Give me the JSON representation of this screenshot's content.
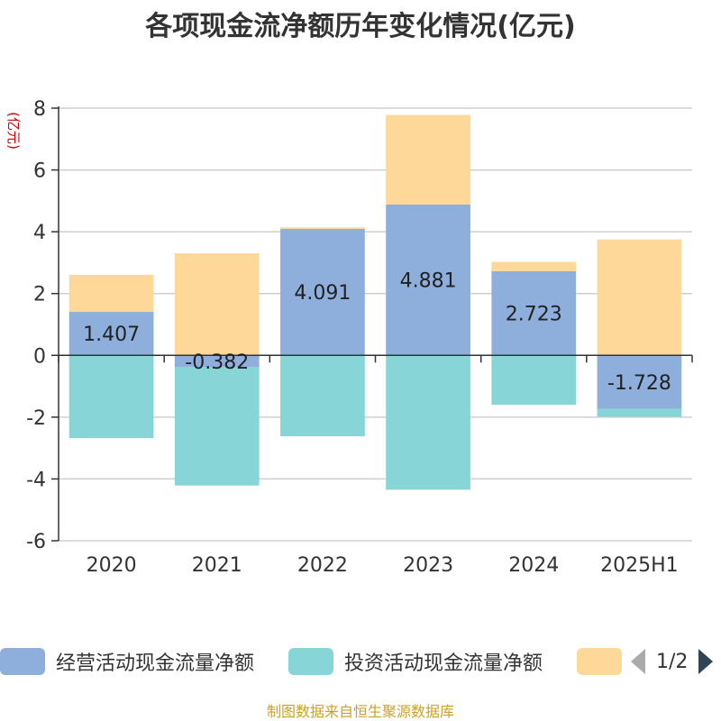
{
  "title": "各项现金流净额历年变化情况(亿元)",
  "chart_data": {
    "type": "bar",
    "stacked": true,
    "y_unit_label": "(亿元)",
    "categories": [
      "2020",
      "2021",
      "2022",
      "2023",
      "2024",
      "2025H1"
    ],
    "ylim": [
      -6,
      8
    ],
    "yticks": [
      -6,
      -4,
      -2,
      0,
      2,
      4,
      6,
      8
    ],
    "grid": true,
    "legend_position": "bottom",
    "series": [
      {
        "name": "经营活动现金流量净额",
        "color": "#8eaedb",
        "values": [
          1.407,
          -0.382,
          4.091,
          4.881,
          2.723,
          -1.728
        ],
        "labels": [
          "1.407",
          "-0.382",
          "4.091",
          "4.881",
          "2.723",
          "-1.728"
        ]
      },
      {
        "name": "投资活动现金流量净额",
        "color": "#88d5d8",
        "values": [
          -2.68,
          -3.83,
          -2.62,
          -4.35,
          -1.6,
          -0.26
        ]
      },
      {
        "name": "",
        "color": "#fed898",
        "values": [
          1.2,
          3.3,
          0.05,
          2.9,
          0.3,
          3.75
        ]
      }
    ]
  },
  "legend": {
    "items": [
      {
        "label": "经营活动现金流量净额",
        "color": "#8eaedb"
      },
      {
        "label": "投资活动现金流量净额",
        "color": "#88d5d8"
      },
      {
        "label": "",
        "color": "#fed898"
      }
    ],
    "page_indicator": "1/2"
  },
  "source": "制图数据来自恒生聚源数据库"
}
